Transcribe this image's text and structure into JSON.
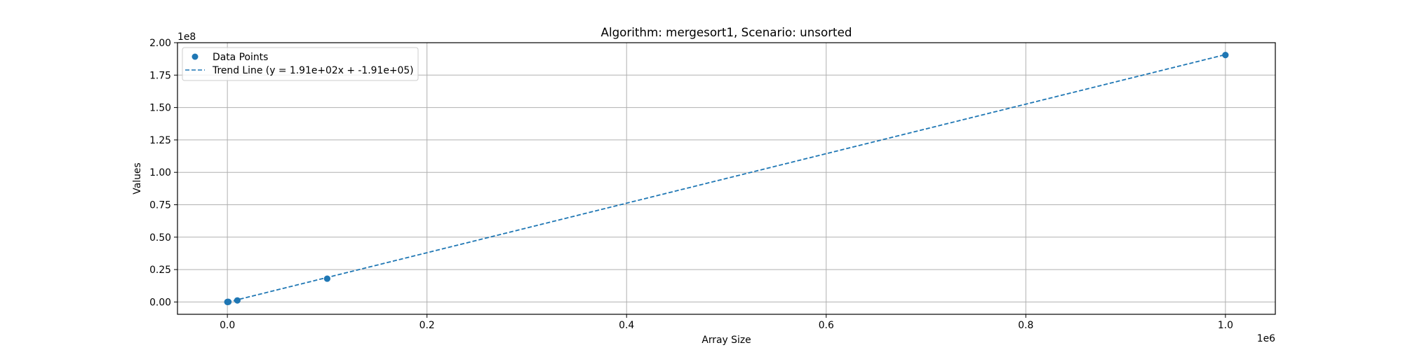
{
  "chart_data": {
    "type": "scatter",
    "title": "Algorithm: mergesort1, Scenario: unsorted",
    "xlabel": "Array Size",
    "ylabel": "Values",
    "x_offset_label": "1e6",
    "y_offset_label": "1e8",
    "xlim": [
      -50000,
      1050000
    ],
    "ylim": [
      -9500000,
      200000000
    ],
    "x_ticks": [
      0,
      200000,
      400000,
      600000,
      800000,
      1000000
    ],
    "x_tick_labels": [
      "0.0",
      "0.2",
      "0.4",
      "0.6",
      "0.8",
      "1.0"
    ],
    "y_ticks": [
      0,
      25000000,
      50000000,
      75000000,
      100000000,
      125000000,
      150000000,
      175000000,
      200000000
    ],
    "y_tick_labels": [
      "0.00",
      "0.25",
      "0.50",
      "0.75",
      "1.00",
      "1.25",
      "1.50",
      "1.75",
      "2.00"
    ],
    "grid": true,
    "legend_position": "top-left",
    "series": [
      {
        "name": "Data Points",
        "kind": "scatter",
        "color": "#1f77b4",
        "x": [
          10,
          100,
          1000,
          10000,
          100000,
          1000000
        ],
        "y": [
          0,
          5000,
          90000,
          1200000,
          18000000,
          190500000
        ]
      },
      {
        "name": "Trend Line (y = 1.91e+02x + -1.91e+05)",
        "kind": "line",
        "style": "dashed",
        "color": "#1f77b4",
        "slope": 191,
        "intercept": -191000,
        "x_range": [
          10,
          1000000
        ]
      }
    ]
  }
}
